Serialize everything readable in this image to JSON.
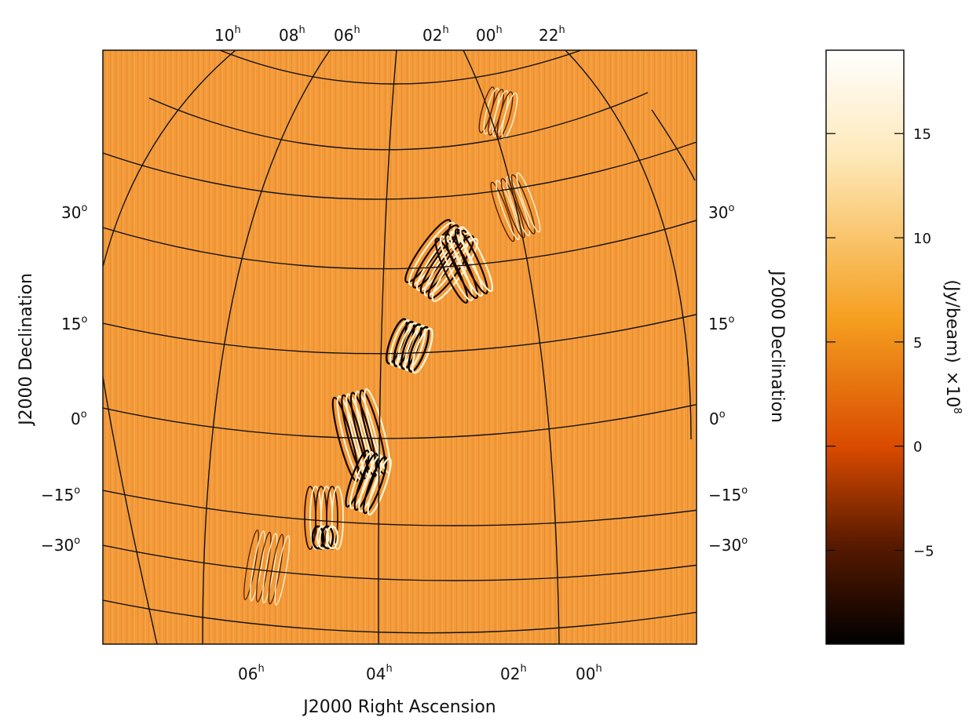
{
  "chart_data": {
    "type": "heatmap",
    "projection": "orthographic sky image",
    "grid": true,
    "colors": {
      "background": "#f39a3a",
      "frame": "#111111",
      "colormap": [
        "#000000",
        "#5a1a00",
        "#d94a00",
        "#f5a020",
        "#fde8b8",
        "#ffffff"
      ]
    },
    "top_ra_labels": [
      {
        "hour": "10",
        "sup": "h"
      },
      {
        "hour": "08",
        "sup": "h"
      },
      {
        "hour": "06",
        "sup": "h"
      },
      {
        "hour": "02",
        "sup": "h"
      },
      {
        "hour": "00",
        "sup": "h"
      },
      {
        "hour": "22",
        "sup": "h"
      }
    ],
    "bottom_ra_labels": [
      {
        "hour": "06",
        "sup": "h"
      },
      {
        "hour": "04",
        "sup": "h"
      },
      {
        "hour": "02",
        "sup": "h"
      },
      {
        "hour": "00",
        "sup": "h"
      }
    ],
    "left_dec_labels": [
      {
        "deg": "30",
        "sup": "o"
      },
      {
        "deg": "15",
        "sup": "o"
      },
      {
        "deg": "0",
        "sup": "o"
      },
      {
        "deg": "−15",
        "sup": "o"
      },
      {
        "deg": "−30",
        "sup": "o"
      }
    ],
    "right_dec_labels": [
      {
        "deg": "30",
        "sup": "o"
      },
      {
        "deg": "15",
        "sup": "o"
      },
      {
        "deg": "0",
        "sup": "o"
      },
      {
        "deg": "−15",
        "sup": "o"
      },
      {
        "deg": "−30",
        "sup": "o"
      }
    ],
    "xlabel": "J2000 Right Ascension",
    "ylabel": "J2000 Declination",
    "ylabel_right": "J2000 Declination",
    "colorbar": {
      "label": "(Jy/beam)",
      "scale_text": "×10",
      "scale_exp": "8",
      "range": [
        -9.5,
        19
      ],
      "ticks": [
        "15",
        "10",
        "5",
        "0",
        "−5"
      ],
      "tick_values": [
        15,
        10,
        5,
        0,
        -5
      ]
    }
  }
}
